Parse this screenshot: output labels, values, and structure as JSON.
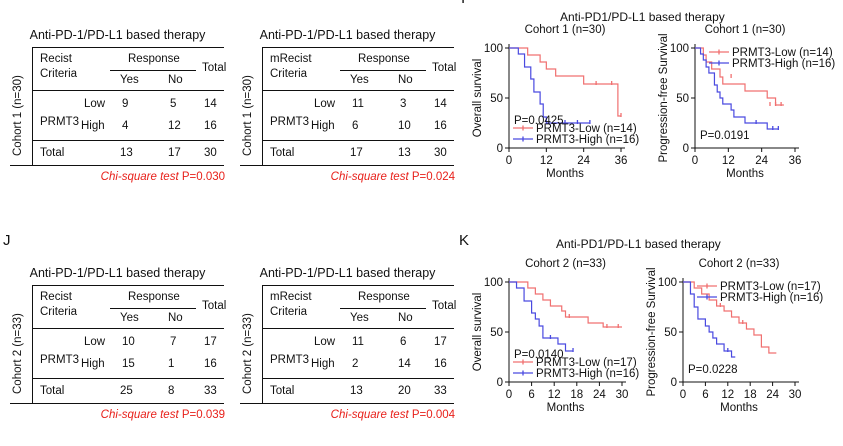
{
  "panels": {
    "i_label": "I",
    "j_label": "J",
    "k_label": "K"
  },
  "tables": [
    {
      "cohort": "Cohort 1 (n=30)",
      "title": "Anti-PD-1/PD-L1 based therapy",
      "criteria_line1": "Recist",
      "criteria_line2": "Criteria",
      "response": "Response",
      "yes": "Yes",
      "no": "No",
      "total": "Total",
      "gene": "PRMT3",
      "low": "Low",
      "high": "High",
      "low_yes": "9",
      "low_no": "5",
      "low_total": "14",
      "high_yes": "4",
      "high_no": "12",
      "high_total": "16",
      "total_label": "Total",
      "tot_yes": "13",
      "tot_no": "17",
      "tot_total": "30",
      "chi_italic": "Chi-square test",
      "chi_p": " P=0.030"
    },
    {
      "cohort": "Cohort 1 (n=30)",
      "title": "Anti-PD-1/PD-L1 based therapy",
      "criteria_line1": "mRecist",
      "criteria_line2": "Criteria",
      "response": "Response",
      "yes": "Yes",
      "no": "No",
      "total": "Total",
      "gene": "PRMT3",
      "low": "Low",
      "high": "High",
      "low_yes": "11",
      "low_no": "3",
      "low_total": "14",
      "high_yes": "6",
      "high_no": "10",
      "high_total": "16",
      "total_label": "Total",
      "tot_yes": "17",
      "tot_no": "13",
      "tot_total": "30",
      "chi_italic": "Chi-square test",
      "chi_p": " P=0.024"
    },
    {
      "cohort": "Cohort 2 (n=33)",
      "title": "Anti-PD-1/PD-L1 based therapy",
      "criteria_line1": "Recist",
      "criteria_line2": "Criteria",
      "response": "Response",
      "yes": "Yes",
      "no": "No",
      "total": "Total",
      "gene": "PRMT3",
      "low": "Low",
      "high": "High",
      "low_yes": "10",
      "low_no": "7",
      "low_total": "17",
      "high_yes": "15",
      "high_no": "1",
      "high_total": "16",
      "total_label": "Total",
      "tot_yes": "25",
      "tot_no": "8",
      "tot_total": "33",
      "chi_italic": "Chi-square test",
      "chi_p": " P=0.039"
    },
    {
      "cohort": "Cohort 2 (n=33)",
      "title": "Anti-PD-1/PD-L1 based therapy",
      "criteria_line1": "mRecist",
      "criteria_line2": "Criteria",
      "response": "Response",
      "yes": "Yes",
      "no": "No",
      "total": "Total",
      "gene": "PRMT3",
      "low": "Low",
      "high": "High",
      "low_yes": "11",
      "low_no": "6",
      "low_total": "17",
      "high_yes": "2",
      "high_no": "14",
      "high_total": "16",
      "total_label": "Total",
      "tot_yes": "13",
      "tot_no": "20",
      "tot_total": "33",
      "chi_italic": "Chi-square test",
      "chi_p": " P=0.004"
    }
  ],
  "km_titles": {
    "top": "Anti-PD1/PD-L1 based therapy",
    "bottom": "Anti-PD1/PD-L1 based therapy"
  },
  "colors": {
    "low": "#f07070",
    "high": "#4a4ae0",
    "chi": "#e8201a"
  },
  "chart_data": [
    {
      "type": "line",
      "subtitle": "Cohort 1 (n=30)",
      "xlabel": "Months",
      "ylabel": "Overall survival",
      "xlim": [
        0,
        36
      ],
      "ylim": [
        0,
        100
      ],
      "xticks": [
        0,
        12,
        24,
        36
      ],
      "yticks": [
        0,
        50,
        100
      ],
      "pvalue": "P=0.0425",
      "legend_position": "bottom-left",
      "series": [
        {
          "name": "PRMT3-Low (n=14)",
          "color": "#f07070",
          "steps": [
            [
              0,
              100
            ],
            [
              6,
              93
            ],
            [
              10,
              86
            ],
            [
              12,
              79
            ],
            [
              15,
              72
            ],
            [
              21,
              72
            ],
            [
              24,
              64
            ],
            [
              26,
              64
            ],
            [
              30,
              64
            ],
            [
              33,
              64
            ],
            [
              35,
              32
            ],
            [
              36,
              32
            ]
          ],
          "censors": [
            [
              28,
              64
            ],
            [
              33,
              64
            ],
            [
              36,
              32
            ]
          ]
        },
        {
          "name": "PRMT3-High (n=16)",
          "color": "#4a4ae0",
          "steps": [
            [
              0,
              100
            ],
            [
              3,
              94
            ],
            [
              5,
              81
            ],
            [
              7,
              69
            ],
            [
              8,
              56
            ],
            [
              10,
              44
            ],
            [
              11,
              31
            ],
            [
              12,
              25
            ],
            [
              15,
              25
            ],
            [
              24,
              25
            ],
            [
              26,
              25
            ]
          ],
          "censors": [
            [
              18,
              25
            ],
            [
              22,
              25
            ],
            [
              26,
              25
            ]
          ]
        }
      ]
    },
    {
      "type": "line",
      "subtitle": "Cohort 1 (n=30)",
      "xlabel": "Months",
      "ylabel": "Progression-free Survival",
      "xlim": [
        0,
        36
      ],
      "ylim": [
        0,
        100
      ],
      "xticks": [
        0,
        12,
        24,
        36
      ],
      "yticks": [
        0,
        50,
        100
      ],
      "pvalue": "P=0.0191",
      "legend_position": "top-right",
      "series": [
        {
          "name": "PRMT3-Low (n=14)",
          "color": "#f07070",
          "steps": [
            [
              0,
              100
            ],
            [
              3,
              93
            ],
            [
              4,
              86
            ],
            [
              6,
              79
            ],
            [
              9,
              71
            ],
            [
              10,
              64
            ],
            [
              16,
              64
            ],
            [
              18,
              57
            ],
            [
              24,
              57
            ],
            [
              26,
              50
            ],
            [
              29,
              43
            ],
            [
              32,
              43
            ]
          ],
          "censors": [
            [
              13,
              71
            ],
            [
              27,
              43
            ],
            [
              29,
              43
            ],
            [
              31,
              43
            ]
          ]
        },
        {
          "name": "PRMT3-High (n=16)",
          "color": "#4a4ae0",
          "steps": [
            [
              0,
              100
            ],
            [
              2,
              94
            ],
            [
              3,
              88
            ],
            [
              4,
              81
            ],
            [
              5,
              75
            ],
            [
              7,
              63
            ],
            [
              8,
              56
            ],
            [
              9,
              50
            ],
            [
              10,
              44
            ],
            [
              13,
              38
            ],
            [
              14,
              31
            ],
            [
              18,
              25
            ],
            [
              21,
              25
            ],
            [
              24,
              25
            ],
            [
              26,
              19
            ],
            [
              30,
              19
            ]
          ],
          "censors": [
            [
              22,
              25
            ],
            [
              28,
              19
            ],
            [
              30,
              19
            ]
          ]
        }
      ]
    },
    {
      "type": "line",
      "subtitle": "Cohort 2 (n=33)",
      "xlabel": "Months",
      "ylabel": "Overall survival",
      "xlim": [
        0,
        30
      ],
      "ylim": [
        0,
        100
      ],
      "xticks": [
        0,
        6,
        12,
        18,
        24,
        30
      ],
      "yticks": [
        0,
        50,
        100
      ],
      "pvalue": "P=0.0140",
      "legend_position": "bottom-left",
      "series": [
        {
          "name": "PRMT3-Low (n=17)",
          "color": "#f07070",
          "steps": [
            [
              0,
              100
            ],
            [
              5,
              94
            ],
            [
              7,
              88
            ],
            [
              9,
              82
            ],
            [
              11,
              76
            ],
            [
              14,
              71
            ],
            [
              15,
              65
            ],
            [
              20,
              65
            ],
            [
              21,
              59
            ],
            [
              24,
              59
            ],
            [
              25,
              55
            ],
            [
              30,
              55
            ]
          ],
          "censors": [
            [
              16,
              65
            ],
            [
              26,
              55
            ],
            [
              29,
              55
            ]
          ]
        },
        {
          "name": "PRMT3-High (n=16)",
          "color": "#4a4ae0",
          "steps": [
            [
              0,
              100
            ],
            [
              2,
              94
            ],
            [
              4,
              81
            ],
            [
              6,
              69
            ],
            [
              7,
              63
            ],
            [
              8,
              56
            ],
            [
              9,
              44
            ],
            [
              12,
              44
            ],
            [
              13,
              38
            ],
            [
              15,
              31
            ],
            [
              16,
              31
            ],
            [
              17,
              31
            ]
          ],
          "censors": [
            [
              11,
              44
            ],
            [
              17,
              31
            ]
          ]
        }
      ]
    },
    {
      "type": "line",
      "subtitle": "Cohort 2 (n=33)",
      "xlabel": "Months",
      "ylabel": "Progression-free Survival",
      "xlim": [
        0,
        30
      ],
      "ylim": [
        0,
        100
      ],
      "xticks": [
        0,
        6,
        12,
        18,
        24,
        30
      ],
      "yticks": [
        0,
        50,
        100
      ],
      "pvalue": "P=0.0228",
      "legend_position": "top-right",
      "series": [
        {
          "name": "PRMT3-Low (n=17)",
          "color": "#f07070",
          "steps": [
            [
              0,
              100
            ],
            [
              3,
              94
            ],
            [
              5,
              88
            ],
            [
              7,
              82
            ],
            [
              9,
              76
            ],
            [
              11,
              71
            ],
            [
              13,
              65
            ],
            [
              15,
              59
            ],
            [
              17,
              53
            ],
            [
              19,
              47
            ],
            [
              21,
              35
            ],
            [
              23,
              29
            ],
            [
              25,
              29
            ]
          ],
          "censors": [
            [
              10,
              76
            ],
            [
              16,
              59
            ]
          ]
        },
        {
          "name": "PRMT3-High (n=16)",
          "color": "#4a4ae0",
          "steps": [
            [
              0,
              100
            ],
            [
              2,
              88
            ],
            [
              3,
              75
            ],
            [
              4,
              63
            ],
            [
              6,
              56
            ],
            [
              7,
              50
            ],
            [
              8,
              44
            ],
            [
              9,
              38
            ],
            [
              11,
              31
            ],
            [
              13,
              25
            ],
            [
              14,
              25
            ]
          ],
          "censors": [
            [
              12,
              31
            ]
          ]
        }
      ]
    }
  ]
}
